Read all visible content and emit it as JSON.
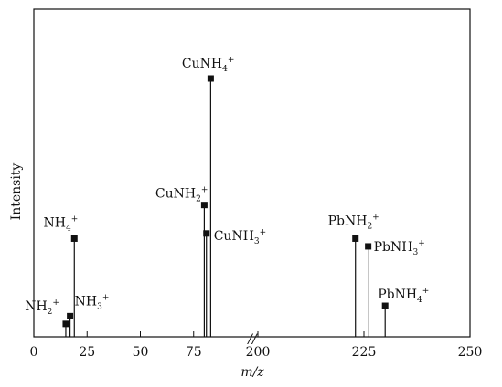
{
  "chart_data": {
    "type": "bar",
    "xlabel": "m/z",
    "ylabel": "Intensity",
    "axis_break": true,
    "axis_break_symbol": "//",
    "segments": [
      {
        "range": [
          0,
          100
        ],
        "ticks": [
          "0",
          "25",
          "50",
          "75"
        ]
      },
      {
        "range": [
          200,
          250
        ],
        "ticks": [
          "200",
          "225",
          "250"
        ]
      }
    ],
    "ylim": [
      0,
      100
    ],
    "grid": false,
    "legend": "none",
    "series": [
      {
        "peaks": [
          {
            "mz": 15,
            "intensity": 5,
            "ion": "NH",
            "sub": "2",
            "sup": "+"
          },
          {
            "mz": 17,
            "intensity": 8,
            "ion": "NH",
            "sub": "3",
            "sup": "+"
          },
          {
            "mz": 19,
            "intensity": 38,
            "ion": "NH",
            "sub": "4",
            "sup": "+"
          },
          {
            "mz": 80,
            "intensity": 51,
            "ion": "CuNH",
            "sub": "2",
            "sup": "+"
          },
          {
            "mz": 83,
            "intensity": 100,
            "ion": "CuNH",
            "sub": "4",
            "sup": "+"
          },
          {
            "mz": 81,
            "intensity": 40,
            "ion": "CuNH",
            "sub": "3",
            "sup": "+"
          },
          {
            "mz": 223,
            "intensity": 38,
            "ion": "PbNH",
            "sub": "2",
            "sup": "+"
          },
          {
            "mz": 226,
            "intensity": 35,
            "ion": "PbNH",
            "sub": "3",
            "sup": "+"
          },
          {
            "mz": 230,
            "intensity": 12,
            "ion": "PbNH",
            "sub": "4",
            "sup": "+"
          }
        ]
      }
    ],
    "colors": {
      "ink": "#111111",
      "background": "#ffffff"
    }
  }
}
